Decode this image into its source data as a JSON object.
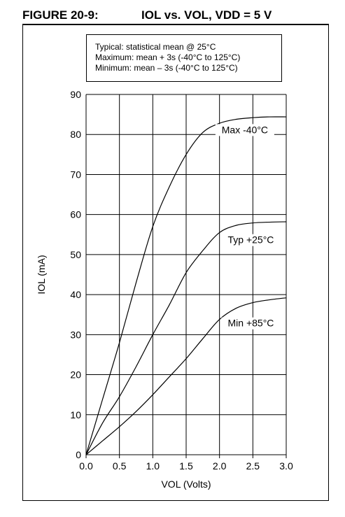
{
  "figure": {
    "label": "FIGURE 20-9:",
    "caption": "IOL vs. VOL, VDD = 5 V"
  },
  "notes": [
    "Typical:  statistical mean @ 25°C",
    "Maximum:  mean + 3s (-40°C to 125°C)",
    "Minimum:   mean – 3s (-40°C to 125°C)"
  ],
  "chart_data": {
    "type": "line",
    "xlabel": "VOL (Volts)",
    "ylabel": "IOL (mA)",
    "xlim": [
      0,
      3.0
    ],
    "ylim": [
      0,
      90
    ],
    "xticks": [
      "0.0",
      "0.5",
      "1.0",
      "1.5",
      "2.0",
      "2.5",
      "3.0"
    ],
    "yticks": [
      "0",
      "10",
      "20",
      "30",
      "40",
      "50",
      "60",
      "70",
      "80",
      "90"
    ],
    "grid": true,
    "series": [
      {
        "name": "Max -40°C",
        "x": [
          0,
          0.25,
          0.5,
          0.75,
          1.0,
          1.25,
          1.5,
          1.75,
          2.0,
          2.25,
          2.5,
          2.75,
          3.0
        ],
        "y": [
          0,
          14,
          28,
          43,
          57,
          67,
          75,
          80.5,
          82.8,
          83.8,
          84.2,
          84.4,
          84.4
        ]
      },
      {
        "name": "Typ +25°C",
        "x": [
          0,
          0.25,
          0.5,
          0.75,
          1.0,
          1.25,
          1.5,
          1.75,
          2.0,
          2.25,
          2.5,
          2.75,
          3.0
        ],
        "y": [
          0,
          8,
          14.5,
          22,
          30,
          37.5,
          45.5,
          51,
          55.5,
          57.3,
          57.9,
          58.1,
          58.2
        ]
      },
      {
        "name": "Min +85°C",
        "x": [
          0,
          0.25,
          0.5,
          0.75,
          1.0,
          1.25,
          1.5,
          1.75,
          2.0,
          2.25,
          2.5,
          2.75,
          3.0
        ],
        "y": [
          0,
          3.5,
          7,
          10.8,
          15,
          19.5,
          24,
          29,
          33.8,
          36.6,
          38,
          38.7,
          39.2
        ]
      }
    ]
  }
}
